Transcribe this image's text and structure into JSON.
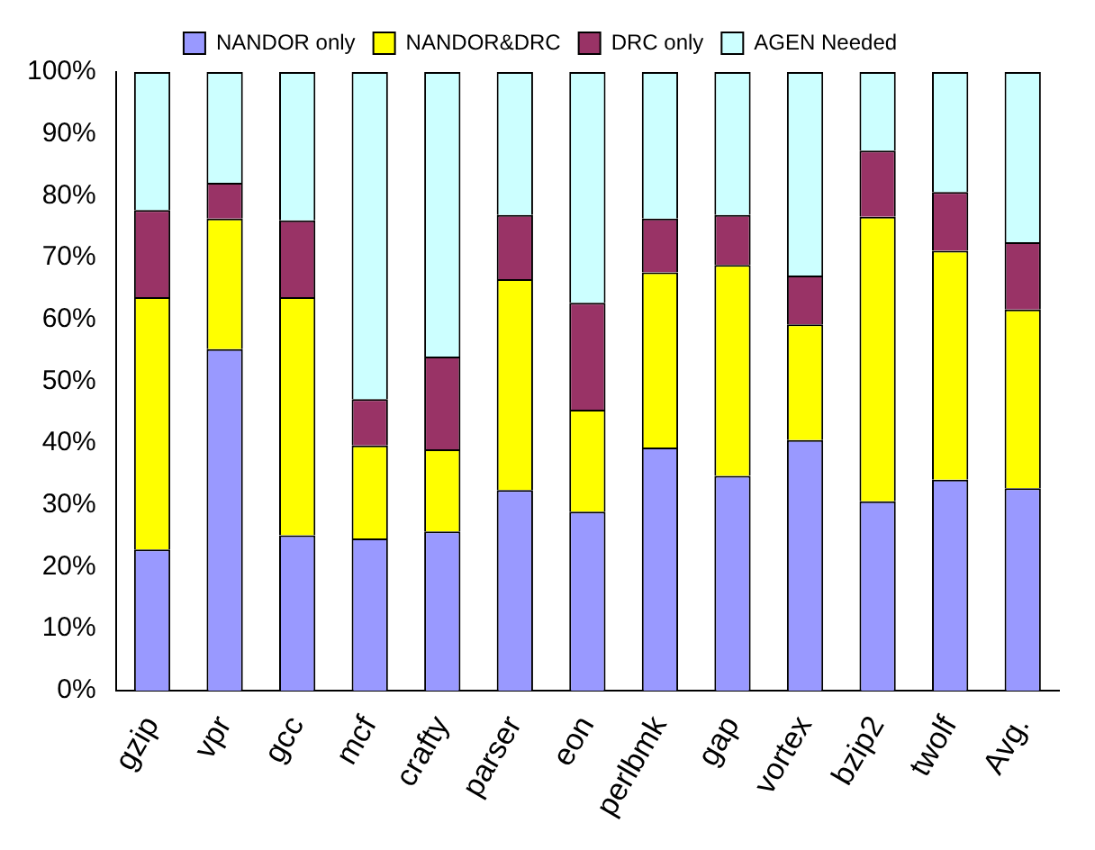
{
  "chart_data": {
    "type": "bar",
    "stacked": true,
    "categories": [
      "gzip",
      "vpr",
      "gcc",
      "mcf",
      "crafty",
      "parser",
      "eon",
      "perlbmk",
      "gap",
      "vortex",
      "bzip2",
      "twolf",
      "Avg."
    ],
    "series": [
      {
        "name": "NANDOR only",
        "color": "#9999ff",
        "values": [
          22.8,
          55.2,
          25.1,
          24.6,
          25.7,
          32.4,
          28.9,
          39.3,
          34.7,
          40.5,
          30.6,
          34.1,
          32.7
        ]
      },
      {
        "name": "NANDOR&DRC",
        "color": "#ffff00",
        "values": [
          40.8,
          21.1,
          38.5,
          15.0,
          13.3,
          34.1,
          16.5,
          28.3,
          34.1,
          18.7,
          46.0,
          37.0,
          28.9
        ]
      },
      {
        "name": "DRC only",
        "color": "#993366",
        "values": [
          14.1,
          5.8,
          12.4,
          7.5,
          15.0,
          10.4,
          17.3,
          8.7,
          8.1,
          7.9,
          10.7,
          9.5,
          10.9
        ]
      },
      {
        "name": "AGEN Needed",
        "color": "#ccffff",
        "values": [
          22.3,
          17.9,
          24.0,
          52.9,
          46.0,
          23.1,
          37.3,
          23.7,
          23.1,
          32.9,
          12.7,
          19.4,
          27.5
        ]
      }
    ],
    "ylim": [
      0,
      100
    ],
    "yticks": [
      {
        "value": 0,
        "label": "0%"
      },
      {
        "value": 10,
        "label": "10%"
      },
      {
        "value": 20,
        "label": "20%"
      },
      {
        "value": 30,
        "label": "30%"
      },
      {
        "value": 40,
        "label": "40%"
      },
      {
        "value": 50,
        "label": "50%"
      },
      {
        "value": 60,
        "label": "60%"
      },
      {
        "value": 70,
        "label": "70%"
      },
      {
        "value": 80,
        "label": "80%"
      },
      {
        "value": 90,
        "label": "90%"
      },
      {
        "value": 100,
        "label": "100%"
      }
    ],
    "grid": false,
    "legend": "top"
  }
}
